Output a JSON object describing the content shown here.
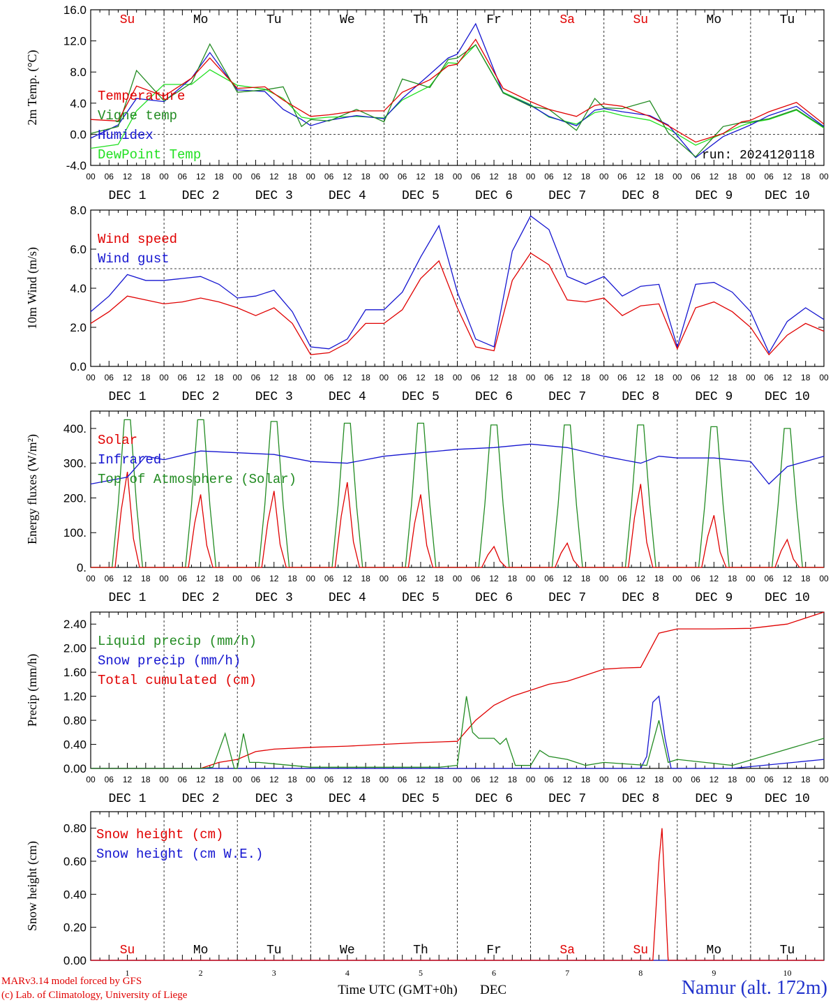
{
  "footer": {
    "credit_line1": "MARv3.14 model forced by GFS",
    "credit_line2": "(c) Lab. of Climatology, University of Liege",
    "station": "Namur (alt. 172m)",
    "xaxis_title": "Time UTC (GMT+0h)",
    "xaxis_month": "DEC"
  },
  "time_axis": {
    "day_count": 10,
    "hour_ticks": [
      "00",
      "06",
      "12",
      "18"
    ],
    "end_tick": "00",
    "date_labels": [
      "DEC  1",
      "DEC  2",
      "DEC  3",
      "DEC  4",
      "DEC  5",
      "DEC  6",
      "DEC  7",
      "DEC  8",
      "DEC  9",
      "DEC 10"
    ],
    "weekdays": [
      "Su",
      "Mo",
      "Tu",
      "We",
      "Th",
      "Fr",
      "Sa",
      "Su",
      "Mo",
      "Tu"
    ],
    "day_numbers": [
      "1",
      "2",
      "3",
      "4",
      "5",
      "6",
      "7",
      "8",
      "9",
      "10"
    ],
    "weekend_color": "#e00000"
  },
  "chart_data": [
    {
      "type": "line",
      "ylabel": "2m Temp. (°C)",
      "ylim": [
        -4,
        16
      ],
      "yticks": [
        "-4.0",
        "0.0",
        "4.0",
        "8.0",
        "12.0",
        "16.0"
      ],
      "ref_line": 0,
      "annotation": "run: 2024120118",
      "x": [
        0,
        9,
        15,
        24,
        33,
        39,
        48,
        57,
        63,
        69,
        72,
        78,
        87,
        96,
        102,
        111,
        117,
        120,
        126,
        135,
        144,
        150,
        159,
        165,
        168,
        174,
        183,
        189,
        198,
        207,
        213,
        216,
        222,
        231,
        240
      ],
      "series": [
        {
          "name": "Temperature",
          "color": "#e00000",
          "values": [
            1.9,
            1.7,
            6.2,
            4.9,
            7.2,
            9.8,
            5.9,
            6.1,
            4.4,
            3.0,
            2.3,
            2.5,
            3.0,
            3.0,
            5.4,
            7.0,
            8.8,
            9.0,
            12.2,
            5.9,
            4.2,
            3.2,
            2.3,
            3.7,
            3.9,
            3.6,
            2.3,
            1.1,
            -1.0,
            0.1,
            1.6,
            1.8,
            2.9,
            4.1,
            1.3
          ]
        },
        {
          "name": "Vigne temp",
          "color": "#228b22",
          "values": [
            0.1,
            1.0,
            8.2,
            4.3,
            6.6,
            11.6,
            5.4,
            5.7,
            6.1,
            1.0,
            1.9,
            1.7,
            3.2,
            1.6,
            7.1,
            6.0,
            9.6,
            9.8,
            11.5,
            5.3,
            3.6,
            3.2,
            0.5,
            4.6,
            3.4,
            3.3,
            4.3,
            0.2,
            -2.9,
            1.0,
            1.5,
            1.6,
            2.0,
            3.2,
            0.9
          ]
        },
        {
          "name": "Humidex",
          "color": "#1515d0",
          "values": [
            -0.5,
            1.2,
            4.6,
            4.2,
            7.2,
            10.5,
            5.7,
            5.5,
            3.2,
            1.9,
            1.1,
            1.8,
            2.4,
            2.0,
            4.6,
            7.7,
            9.8,
            10.3,
            14.2,
            5.3,
            3.7,
            2.3,
            1.1,
            3.1,
            3.3,
            2.9,
            2.4,
            1.2,
            -3.0,
            -0.3,
            0.7,
            1.2,
            2.4,
            3.6,
            1.0
          ]
        },
        {
          "name": "DewPoint Temp",
          "color": "#22e022",
          "values": [
            -1.8,
            -1.3,
            3.0,
            6.4,
            6.4,
            8.3,
            6.3,
            5.8,
            4.6,
            2.2,
            2.0,
            2.2,
            2.3,
            2.1,
            4.4,
            6.2,
            9.2,
            9.1,
            11.5,
            5.4,
            3.8,
            2.2,
            1.3,
            2.8,
            3.0,
            2.4,
            1.8,
            0.7,
            -1.4,
            0.1,
            1.1,
            1.5,
            1.9,
            3.1,
            0.8
          ]
        }
      ]
    },
    {
      "type": "line",
      "ylabel": "10m Wind (m/s)",
      "ylim": [
        0,
        8
      ],
      "yticks": [
        "0.0",
        "2.0",
        "4.0",
        "6.0",
        "8.0"
      ],
      "ref_line": 5,
      "x": [
        0,
        6,
        12,
        18,
        24,
        30,
        36,
        42,
        48,
        54,
        60,
        66,
        72,
        78,
        84,
        90,
        96,
        102,
        108,
        114,
        120,
        126,
        132,
        138,
        144,
        150,
        156,
        162,
        168,
        174,
        180,
        186,
        192,
        198,
        204,
        210,
        216,
        222,
        228,
        234,
        240
      ],
      "series": [
        {
          "name": "Wind speed",
          "color": "#e00000",
          "values": [
            2.2,
            2.8,
            3.6,
            3.4,
            3.2,
            3.3,
            3.5,
            3.3,
            3.0,
            2.6,
            3.0,
            2.2,
            0.6,
            0.7,
            1.2,
            2.2,
            2.2,
            2.9,
            4.5,
            5.4,
            3.0,
            1.0,
            0.8,
            4.4,
            5.8,
            5.2,
            3.4,
            3.3,
            3.5,
            2.6,
            3.1,
            3.2,
            0.9,
            3.0,
            3.3,
            2.8,
            2.0,
            0.6,
            1.6,
            2.2,
            1.8
          ]
        },
        {
          "name": "Wind gust",
          "color": "#1515d0",
          "values": [
            2.8,
            3.6,
            4.7,
            4.4,
            4.4,
            4.5,
            4.6,
            4.2,
            3.5,
            3.6,
            3.9,
            2.8,
            1.0,
            0.9,
            1.4,
            2.9,
            2.9,
            3.8,
            5.6,
            7.2,
            3.8,
            1.4,
            1.0,
            5.9,
            7.7,
            7.0,
            4.6,
            4.2,
            4.6,
            3.6,
            4.1,
            4.2,
            1.0,
            4.2,
            4.3,
            3.8,
            2.8,
            0.7,
            2.3,
            3.0,
            2.4
          ]
        }
      ]
    },
    {
      "type": "line",
      "ylabel": "Energy fluxes (W/m²)",
      "ylim": [
        0,
        450
      ],
      "yticks": [
        "0.",
        "100.",
        "200.",
        "300.",
        "400."
      ],
      "diurnal": {
        "solar_peaks": [
          275,
          210,
          220,
          245,
          210,
          60,
          70,
          240,
          150,
          80
        ],
        "toa_peaks": [
          425,
          425,
          420,
          415,
          415,
          410,
          410,
          410,
          405,
          400
        ]
      },
      "series": [
        {
          "name": "Solar",
          "color": "#e00000"
        },
        {
          "name": "Infrared",
          "color": "#1515d0",
          "x": [
            0,
            12,
            18,
            24,
            36,
            48,
            60,
            72,
            84,
            96,
            108,
            120,
            132,
            144,
            156,
            168,
            180,
            186,
            192,
            204,
            210,
            216,
            222,
            228,
            240
          ],
          "values": [
            240,
            260,
            320,
            310,
            335,
            330,
            325,
            305,
            300,
            320,
            330,
            340,
            345,
            355,
            345,
            320,
            300,
            320,
            315,
            315,
            310,
            305,
            240,
            290,
            320
          ]
        },
        {
          "name": "Top of Atmosphere (Solar)",
          "color": "#228b22"
        }
      ]
    },
    {
      "type": "line",
      "ylabel": "Precip (mm/h)",
      "ylim": [
        0,
        2.6
      ],
      "yticks": [
        "0.00",
        "0.40",
        "0.80",
        "1.20",
        "1.60",
        "2.00",
        "2.40"
      ],
      "series": [
        {
          "name": "Liquid precip (mm/h)",
          "color": "#228b22",
          "x": [
            0,
            36,
            40,
            42,
            44,
            47,
            48,
            50,
            52,
            55,
            72,
            96,
            114,
            120,
            123,
            125,
            127,
            129,
            132,
            134,
            136,
            139,
            144,
            147,
            150,
            156,
            162,
            168,
            182,
            186,
            189,
            192,
            210,
            240
          ],
          "values": [
            0,
            0,
            0.02,
            0.3,
            0.58,
            0,
            0,
            0.58,
            0.1,
            0.1,
            0.02,
            0.02,
            0.02,
            0.05,
            1.2,
            0.6,
            0.5,
            0.5,
            0.5,
            0.4,
            0.5,
            0.05,
            0.05,
            0.3,
            0.2,
            0.15,
            0.05,
            0.1,
            0.05,
            0.8,
            0.1,
            0.15,
            0.05,
            0.5
          ]
        },
        {
          "name": "Snow precip (mm/h)",
          "color": "#1515d0",
          "x": [
            0,
            180,
            182,
            184,
            186,
            188,
            190,
            210,
            240
          ],
          "values": [
            0,
            0,
            0.2,
            1.1,
            1.2,
            0.5,
            0,
            0,
            0.15
          ]
        },
        {
          "name": "Total cumulated (cm)",
          "color": "#e00000",
          "x": [
            0,
            36,
            42,
            48,
            54,
            60,
            72,
            84,
            96,
            108,
            120,
            126,
            132,
            138,
            144,
            150,
            156,
            162,
            168,
            174,
            180,
            186,
            192,
            204,
            216,
            228,
            240
          ],
          "values": [
            0,
            0,
            0.1,
            0.15,
            0.28,
            0.32,
            0.35,
            0.37,
            0.4,
            0.43,
            0.45,
            0.8,
            1.05,
            1.2,
            1.3,
            1.4,
            1.45,
            1.55,
            1.65,
            1.67,
            1.68,
            2.25,
            2.32,
            2.32,
            2.33,
            2.4,
            2.6
          ]
        }
      ]
    },
    {
      "type": "line",
      "ylabel": "Snow height (cm)",
      "ylim": [
        0,
        0.9
      ],
      "yticks": [
        "0.00",
        "0.20",
        "0.40",
        "0.60",
        "0.80"
      ],
      "series": [
        {
          "name": "Snow height (cm)",
          "color": "#e00000",
          "x": [
            0,
            184,
            186,
            187,
            189,
            240
          ],
          "values": [
            0,
            0,
            0.6,
            0.8,
            0,
            0
          ]
        },
        {
          "name": "Snow height (cm W.E.)",
          "color": "#1515d0",
          "x": [
            0,
            240
          ],
          "values": [
            0,
            0
          ]
        }
      ]
    }
  ]
}
